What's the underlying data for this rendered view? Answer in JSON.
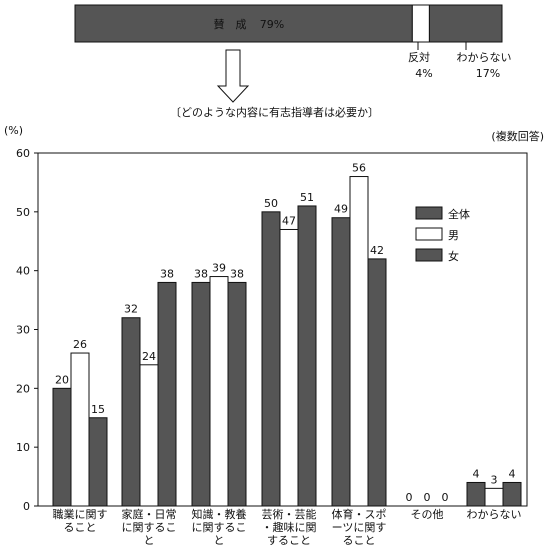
{
  "top_bar": {
    "segments": [
      {
        "label": "賛　成",
        "value_text": "79%",
        "value": 79,
        "color": "#555555"
      },
      {
        "label": "反対",
        "value_text": "4%",
        "value": 4,
        "color": "#ffffff"
      },
      {
        "label": "わからない",
        "value_text": "17%",
        "value": 17,
        "color": "#555555"
      }
    ],
    "question": "〔どのような内容に有志指導者は必要か〕"
  },
  "chart_data": {
    "type": "bar",
    "y_unit": "(%)",
    "note": "(複数回答)",
    "ylim": [
      0,
      60
    ],
    "yticks": [
      0,
      10,
      20,
      30,
      40,
      50,
      60
    ],
    "categories": [
      [
        "職業に関す",
        "ること"
      ],
      [
        "家庭・日常",
        "に関するこ",
        "と"
      ],
      [
        "知識・教養",
        "に関するこ",
        "と"
      ],
      [
        "芸術・芸能",
        "・趣味に関",
        "すること"
      ],
      [
        "体育・スポ",
        "ーツに関す",
        "ること"
      ],
      [
        "その他"
      ],
      [
        "わからない"
      ]
    ],
    "series": [
      {
        "name": "全体",
        "color": "#555555",
        "values": [
          20,
          32,
          38,
          50,
          49,
          0,
          4
        ]
      },
      {
        "name": "男",
        "color": "#ffffff",
        "values": [
          26,
          24,
          39,
          47,
          56,
          0,
          3
        ]
      },
      {
        "name": "女",
        "color": "#555555",
        "values": [
          15,
          38,
          38,
          51,
          42,
          0,
          4
        ]
      }
    ],
    "legend_position": "top-right"
  }
}
